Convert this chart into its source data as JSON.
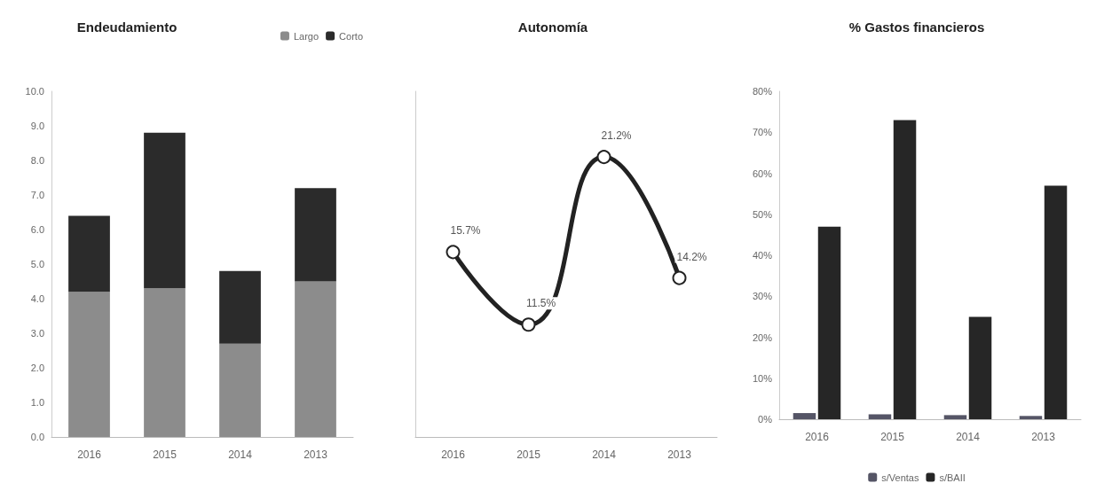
{
  "chart_data": [
    {
      "type": "bar",
      "title": "Endeudamiento",
      "categories": [
        "2016",
        "2015",
        "2014",
        "2013"
      ],
      "stacked": true,
      "legend": "top right",
      "series": [
        {
          "name": "Largo",
          "color": "#8c8c8c",
          "values": [
            4.2,
            4.3,
            2.7,
            4.5
          ]
        },
        {
          "name": "Corto",
          "color": "#2b2b2b",
          "values": [
            2.2,
            4.5,
            2.1,
            2.7
          ]
        }
      ],
      "ylim": [
        0,
        10
      ],
      "yticks": [
        {
          "value": 0,
          "label": "0.0"
        },
        {
          "value": 1,
          "label": "1.0"
        },
        {
          "value": 2,
          "label": "2.0"
        },
        {
          "value": 3,
          "label": "3.0"
        },
        {
          "value": 4,
          "label": "4.0"
        },
        {
          "value": 5,
          "label": "5.0"
        },
        {
          "value": 6,
          "label": "6.0"
        },
        {
          "value": 7,
          "label": "7.0"
        },
        {
          "value": 8,
          "label": "8.0"
        },
        {
          "value": 9,
          "label": "9.0"
        },
        {
          "value": 10,
          "label": "10.0"
        }
      ]
    },
    {
      "type": "line",
      "title": "Autonomía",
      "categories": [
        "2016",
        "2015",
        "2014",
        "2013"
      ],
      "marker": "circle",
      "series": [
        {
          "color": "#222222",
          "values": [
            15.7,
            11.5,
            21.2,
            14.2
          ],
          "value_labels": [
            "15.7%",
            "11.5%",
            "21.2%",
            "14.2%"
          ]
        }
      ],
      "ylim": [
        5,
        25
      ],
      "tick_labels": "x"
    },
    {
      "type": "bar",
      "title": "% Gastos financieros",
      "categories": [
        "2016",
        "2015",
        "2014",
        "2013"
      ],
      "legend": "bottom",
      "series": [
        {
          "name": "s/Ventas",
          "color": "#555566",
          "values": [
            1.5,
            1.2,
            1.0,
            0.8
          ]
        },
        {
          "name": "s/BAII",
          "color": "#262626",
          "values": [
            47,
            73,
            25,
            57
          ]
        }
      ],
      "ylim": [
        0,
        80
      ],
      "yticks": [
        {
          "value": 0,
          "label": "0%"
        },
        {
          "value": 10,
          "label": "10%"
        },
        {
          "value": 20,
          "label": "20%"
        },
        {
          "value": 30,
          "label": "30%"
        },
        {
          "value": 40,
          "label": "40%"
        },
        {
          "value": 50,
          "label": "50%"
        },
        {
          "value": 60,
          "label": "60%"
        },
        {
          "value": 70,
          "label": "70%"
        },
        {
          "value": 80,
          "label": "80%"
        }
      ]
    }
  ]
}
